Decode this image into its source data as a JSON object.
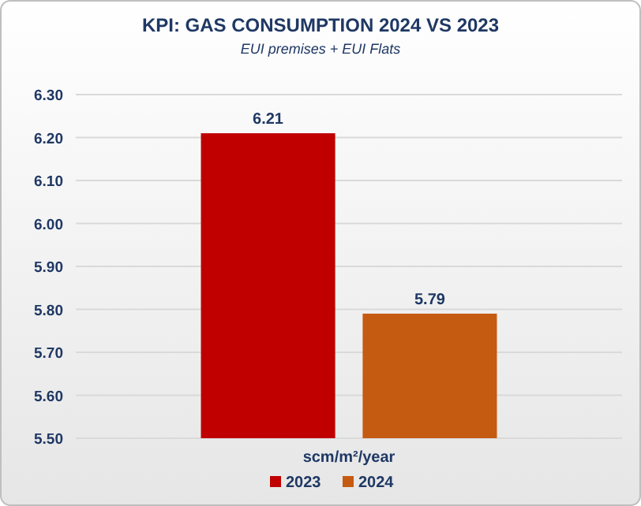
{
  "chart_data": {
    "type": "bar",
    "title": "KPI: GAS CONSUMPTION 2024 VS 2023",
    "subtitle": "EUI premises + EUI Flats",
    "categories": [
      "scm/m²/year"
    ],
    "series": [
      {
        "name": "2023",
        "color": "#c00000",
        "values": [
          6.21
        ]
      },
      {
        "name": "2024",
        "color": "#c55a11",
        "values": [
          5.79
        ]
      }
    ],
    "ylim": [
      5.5,
      6.3
    ],
    "yticks": [
      {
        "value": 5.5,
        "label": "5.50"
      },
      {
        "value": 5.6,
        "label": "5.60"
      },
      {
        "value": 5.7,
        "label": "5.70"
      },
      {
        "value": 5.8,
        "label": "5.80"
      },
      {
        "value": 5.9,
        "label": "5.90"
      },
      {
        "value": 6.0,
        "label": "6.00"
      },
      {
        "value": 6.1,
        "label": "6.10"
      },
      {
        "value": 6.2,
        "label": "6.20"
      },
      {
        "value": 6.3,
        "label": "6.30"
      }
    ],
    "grid": "y",
    "legend": "bottom",
    "data_labels": true
  }
}
